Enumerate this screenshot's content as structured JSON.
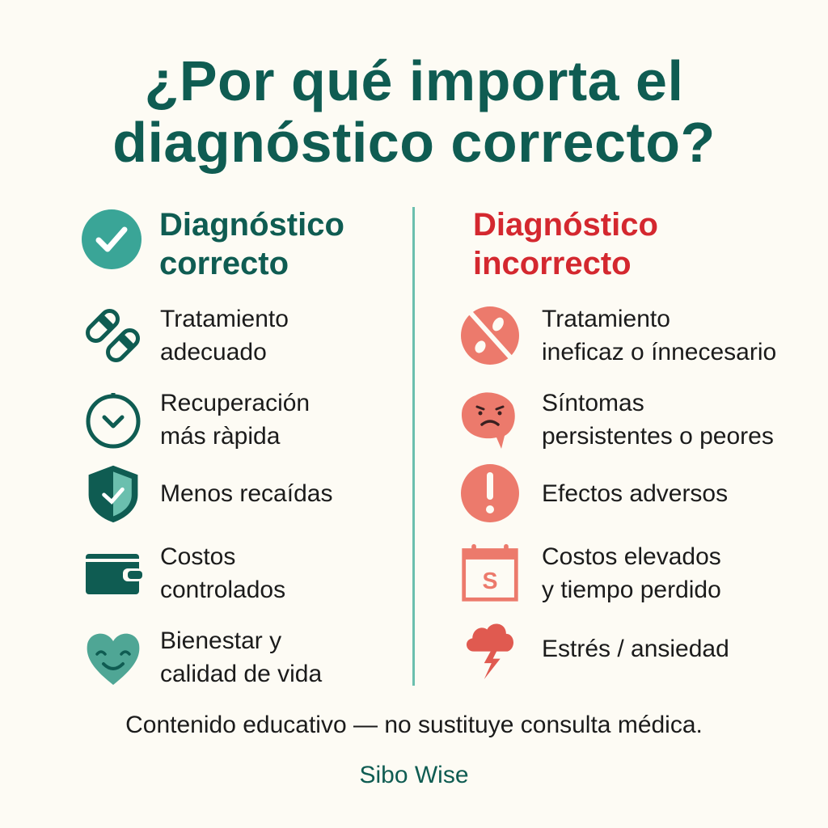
{
  "title": {
    "line1": "¿Por qué importa el",
    "line2": "diagnóstico correcto?"
  },
  "colors": {
    "teal_dark": "#0f5c52",
    "teal": "#3aa597",
    "red": "#d4282f",
    "salmon": "#ec7a6c",
    "background": "#fdfbf4"
  },
  "left": {
    "heading_line1": "Diagnóstico",
    "heading_line2": "correcto",
    "heading_icon": "check-circle-icon",
    "items": [
      {
        "icon": "pills-icon",
        "text": "Tratamiento\nadecuado"
      },
      {
        "icon": "clock-icon",
        "text": "Recuperación\nmás ràpida"
      },
      {
        "icon": "shield-check-icon",
        "text": "Menos recaídas"
      },
      {
        "icon": "wallet-icon",
        "text": "Costos\ncontrolados"
      },
      {
        "icon": "smiling-heart-icon",
        "text": "Bienestar y\ncalidad de vida"
      }
    ]
  },
  "right": {
    "heading_line1": "Diagnóstico",
    "heading_line2": "incorrecto",
    "items": [
      {
        "icon": "no-pill-icon",
        "text": "Tratamiento\nineficaz o ínnecesario"
      },
      {
        "icon": "sad-gut-icon",
        "text": "Síntomas\npersistentes o peores"
      },
      {
        "icon": "exclamation-icon",
        "text": "Efectos adversos"
      },
      {
        "icon": "calendar-money-icon",
        "text": "Costos elevados\ny tiempo perdido"
      },
      {
        "icon": "storm-cloud-icon",
        "text": "Estrés / ansiedad"
      }
    ]
  },
  "footer": {
    "disclaimer": "Contenido educativo — no sustituye consulta médica.",
    "brand": "Sibo Wise"
  }
}
